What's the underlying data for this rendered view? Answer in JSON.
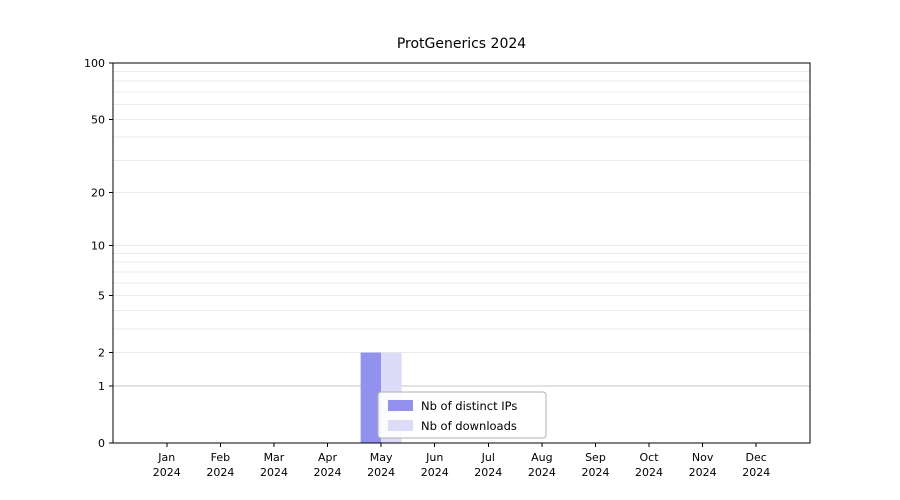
{
  "chart_data": {
    "type": "bar",
    "title": "ProtGenerics 2024",
    "months": [
      "Jan",
      "Feb",
      "Mar",
      "Apr",
      "May",
      "Jun",
      "Jul",
      "Aug",
      "Sep",
      "Oct",
      "Nov",
      "Dec"
    ],
    "year": "2024",
    "series": [
      {
        "name": "Nb of distinct IPs",
        "color": "#9292ee",
        "values": [
          0,
          0,
          0,
          0,
          2,
          0,
          0,
          0,
          0,
          0,
          0,
          0
        ]
      },
      {
        "name": "Nb of downloads",
        "color": "#dcdcf8",
        "values": [
          0,
          0,
          0,
          0,
          2,
          0,
          0,
          0,
          0,
          0,
          0,
          0
        ]
      }
    ],
    "yscale": "log1p",
    "ylim": [
      0,
      100
    ],
    "yticks": [
      0,
      1,
      2,
      5,
      10,
      20,
      50,
      100
    ],
    "gridline_values": [
      1,
      2,
      3,
      4,
      5,
      6,
      7,
      8,
      9,
      10,
      20,
      30,
      40,
      50,
      60,
      70,
      80,
      90,
      100
    ],
    "emphasized_gridline": 1,
    "legend": {
      "position": "inside-bottom-center"
    },
    "colors": {
      "grid": "#ebebeb",
      "grid_emphasis": "#c6c6c6",
      "axis": "#000000",
      "background": "#ffffff",
      "legend_border": "#b0b0b0"
    }
  }
}
